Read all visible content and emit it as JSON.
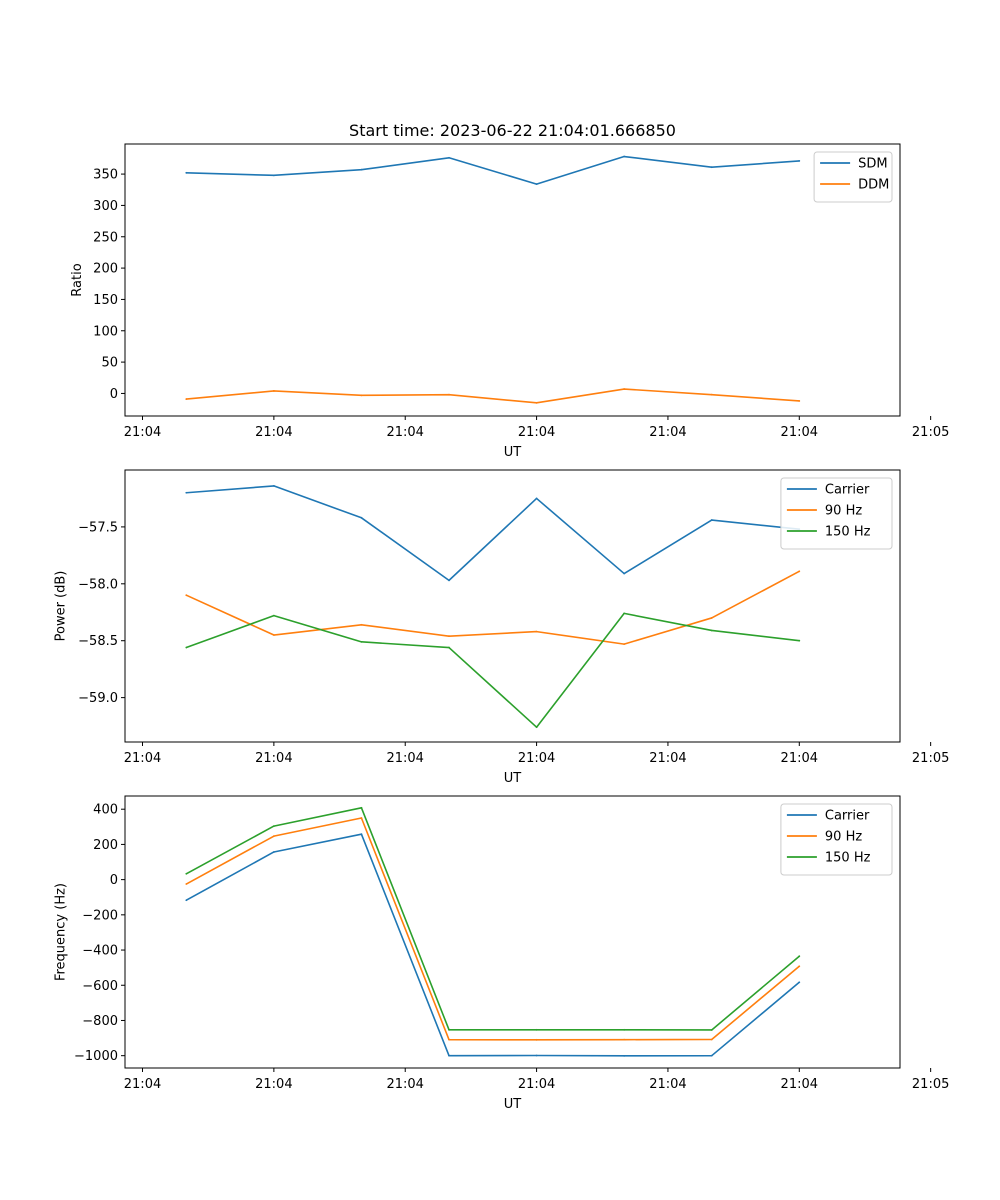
{
  "chart_data": [
    {
      "type": "line",
      "title": "Start time: 2023-06-22 21:04:01.666850",
      "xlabel": "UT",
      "ylabel": "Ratio",
      "x": [
        1,
        2,
        3,
        4,
        5,
        6,
        7,
        8
      ],
      "xlim": [
        0.3,
        9.15
      ],
      "xticks": [
        0.5,
        2,
        3.5,
        5,
        6.5,
        8,
        9.5
      ],
      "xtick_labels": [
        "21:04",
        "21:04",
        "21:04",
        "21:04",
        "21:04",
        "21:04",
        "21:05"
      ],
      "ylim": [
        -36,
        398
      ],
      "yticks": [
        0,
        50,
        100,
        150,
        200,
        250,
        300,
        350
      ],
      "ytick_labels": [
        "0",
        "50",
        "100",
        "150",
        "200",
        "250",
        "300",
        "350"
      ],
      "legend_position": "top-right",
      "grid": false,
      "series": [
        {
          "name": "SDM",
          "color": "#1f77b4",
          "values": [
            352,
            348,
            357,
            376,
            334,
            378,
            361,
            371
          ]
        },
        {
          "name": "DDM",
          "color": "#ff7f0e",
          "values": [
            -9,
            4,
            -3,
            -2,
            -15,
            7,
            -2,
            -12
          ]
        }
      ]
    },
    {
      "type": "line",
      "title": "",
      "xlabel": "UT",
      "ylabel": "Power (dB)",
      "x": [
        1,
        2,
        3,
        4,
        5,
        6,
        7,
        8
      ],
      "xlim": [
        0.3,
        9.15
      ],
      "xticks": [
        0.5,
        2,
        3.5,
        5,
        6.5,
        8,
        9.5
      ],
      "xtick_labels": [
        "21:04",
        "21:04",
        "21:04",
        "21:04",
        "21:04",
        "21:04",
        "21:05"
      ],
      "ylim": [
        -59.39,
        -57.0
      ],
      "yticks": [
        -59.0,
        -58.5,
        -58.0,
        -57.5
      ],
      "ytick_labels": [
        "−59.0",
        "−58.5",
        "−58.0",
        "−57.5"
      ],
      "legend_position": "top-right",
      "grid": false,
      "series": [
        {
          "name": "Carrier",
          "color": "#1f77b4",
          "values": [
            -57.2,
            -57.14,
            -57.42,
            -57.97,
            -57.25,
            -57.91,
            -57.44,
            -57.52
          ]
        },
        {
          "name": "90 Hz",
          "color": "#ff7f0e",
          "values": [
            -58.1,
            -58.45,
            -58.36,
            -58.46,
            -58.42,
            -58.53,
            -58.3,
            -57.89
          ]
        },
        {
          "name": "150 Hz",
          "color": "#2ca02c",
          "values": [
            -58.56,
            -58.28,
            -58.51,
            -58.56,
            -59.26,
            -58.26,
            -58.41,
            -58.5
          ]
        }
      ]
    },
    {
      "type": "line",
      "title": "",
      "xlabel": "UT",
      "ylabel": "Frequency (Hz)",
      "x": [
        1,
        2,
        3,
        4,
        5,
        6,
        7,
        8
      ],
      "xlim": [
        0.3,
        9.15
      ],
      "xticks": [
        0.5,
        2,
        3.5,
        5,
        6.5,
        8,
        9.5
      ],
      "xtick_labels": [
        "21:04",
        "21:04",
        "21:04",
        "21:04",
        "21:04",
        "21:04",
        "21:05"
      ],
      "ylim": [
        -1070,
        475
      ],
      "yticks": [
        -1000,
        -800,
        -600,
        -400,
        -200,
        0,
        200,
        400
      ],
      "ytick_labels": [
        "−1000",
        "−800",
        "−600",
        "−400",
        "−200",
        "0",
        "200",
        "400"
      ],
      "legend_position": "top-right",
      "grid": false,
      "series": [
        {
          "name": "Carrier",
          "color": "#1f77b4",
          "values": [
            -117,
            157,
            258,
            -1000,
            -999,
            -1001,
            -1000,
            -583
          ]
        },
        {
          "name": "90 Hz",
          "color": "#ff7f0e",
          "values": [
            -25,
            247,
            350,
            -909,
            -910,
            -909,
            -908,
            -492
          ]
        },
        {
          "name": "150 Hz",
          "color": "#2ca02c",
          "values": [
            33,
            304,
            408,
            -853,
            -853,
            -853,
            -854,
            -435
          ]
        }
      ]
    }
  ]
}
